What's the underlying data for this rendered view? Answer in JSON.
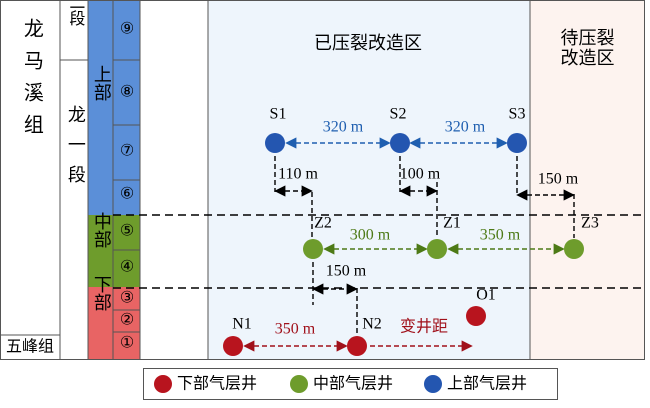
{
  "strata": {
    "formation": "龙马溪组",
    "wufeng": "五峰组",
    "member2": "龙二段",
    "member1": "龙一段",
    "upper": "上部",
    "middle": "中部",
    "lower": "下部",
    "layers": [
      "①",
      "②",
      "③",
      "④",
      "⑤",
      "⑥",
      "⑦",
      "⑧",
      "⑨"
    ]
  },
  "zones": {
    "fractured": "已压裂改造区",
    "pending": "待压裂改造区"
  },
  "wells": {
    "S1": "S1",
    "S2": "S2",
    "S3": "S3",
    "Z1": "Z1",
    "Z2": "Z2",
    "Z3": "Z3",
    "N1": "N1",
    "N2": "N2",
    "O1": "O1"
  },
  "spacings": {
    "s1s2": "320 m",
    "s2s3": "320 m",
    "s1z2": "110 m",
    "s2z1": "100 m",
    "s3z3": "150 m",
    "z2z1": "300 m",
    "z1z3": "350 m",
    "z2n2": "150 m",
    "n1n2": "350 m",
    "variable": "变井距"
  },
  "legend": [
    "下部气层井",
    "中部气层井",
    "上部气层井"
  ]
}
